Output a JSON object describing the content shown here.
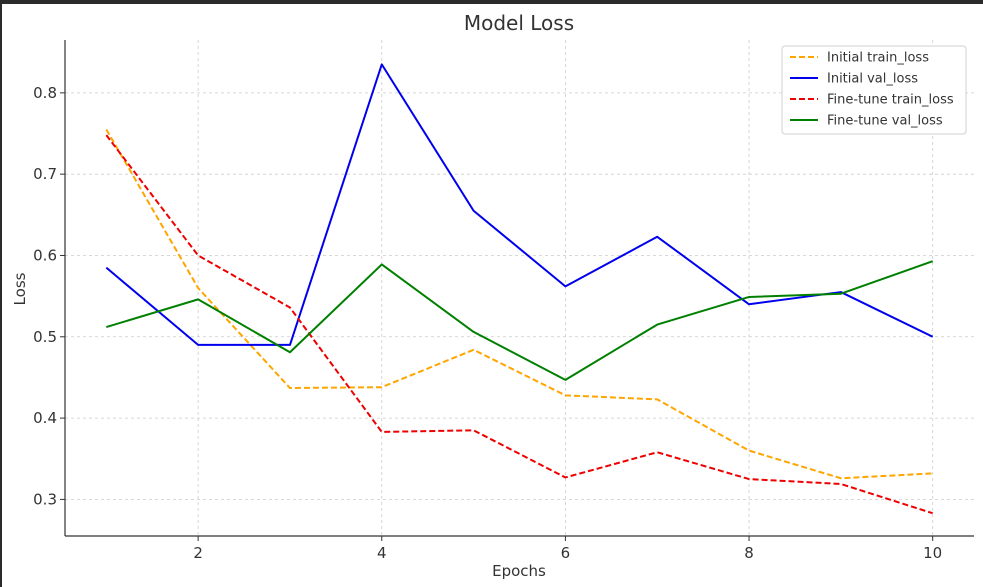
{
  "chart_data": {
    "type": "line",
    "title": "Model Loss",
    "xlabel": "Epochs",
    "ylabel": "Loss",
    "x": [
      1,
      2,
      3,
      4,
      5,
      6,
      7,
      8,
      9,
      10
    ],
    "xlim": [
      0.55,
      10.45
    ],
    "ylim": [
      0.255,
      0.865
    ],
    "xticks": [
      2,
      4,
      6,
      8,
      10
    ],
    "yticks": [
      0.3,
      0.4,
      0.5,
      0.6,
      0.7,
      0.8
    ],
    "grid": true,
    "legend_position": "top-right",
    "series": [
      {
        "name": "Initial train_loss",
        "color": "#FFA500",
        "dash": "dashed",
        "values": [
          0.755,
          0.56,
          0.437,
          0.438,
          0.484,
          0.428,
          0.423,
          0.36,
          0.326,
          0.332
        ]
      },
      {
        "name": "Initial val_loss",
        "color": "#0000EE",
        "dash": "solid",
        "values": [
          0.585,
          0.49,
          0.49,
          0.835,
          0.655,
          0.562,
          0.623,
          0.54,
          0.555,
          0.5
        ]
      },
      {
        "name": "Fine-tune train_loss",
        "color": "#EE0000",
        "dash": "dashed",
        "values": [
          0.748,
          0.6,
          0.536,
          0.383,
          0.385,
          0.327,
          0.358,
          0.325,
          0.319,
          0.283
        ]
      },
      {
        "name": "Fine-tune val_loss",
        "color": "#008000",
        "dash": "solid",
        "values": [
          0.512,
          0.546,
          0.481,
          0.589,
          0.506,
          0.447,
          0.515,
          0.549,
          0.553,
          0.593
        ]
      }
    ]
  }
}
